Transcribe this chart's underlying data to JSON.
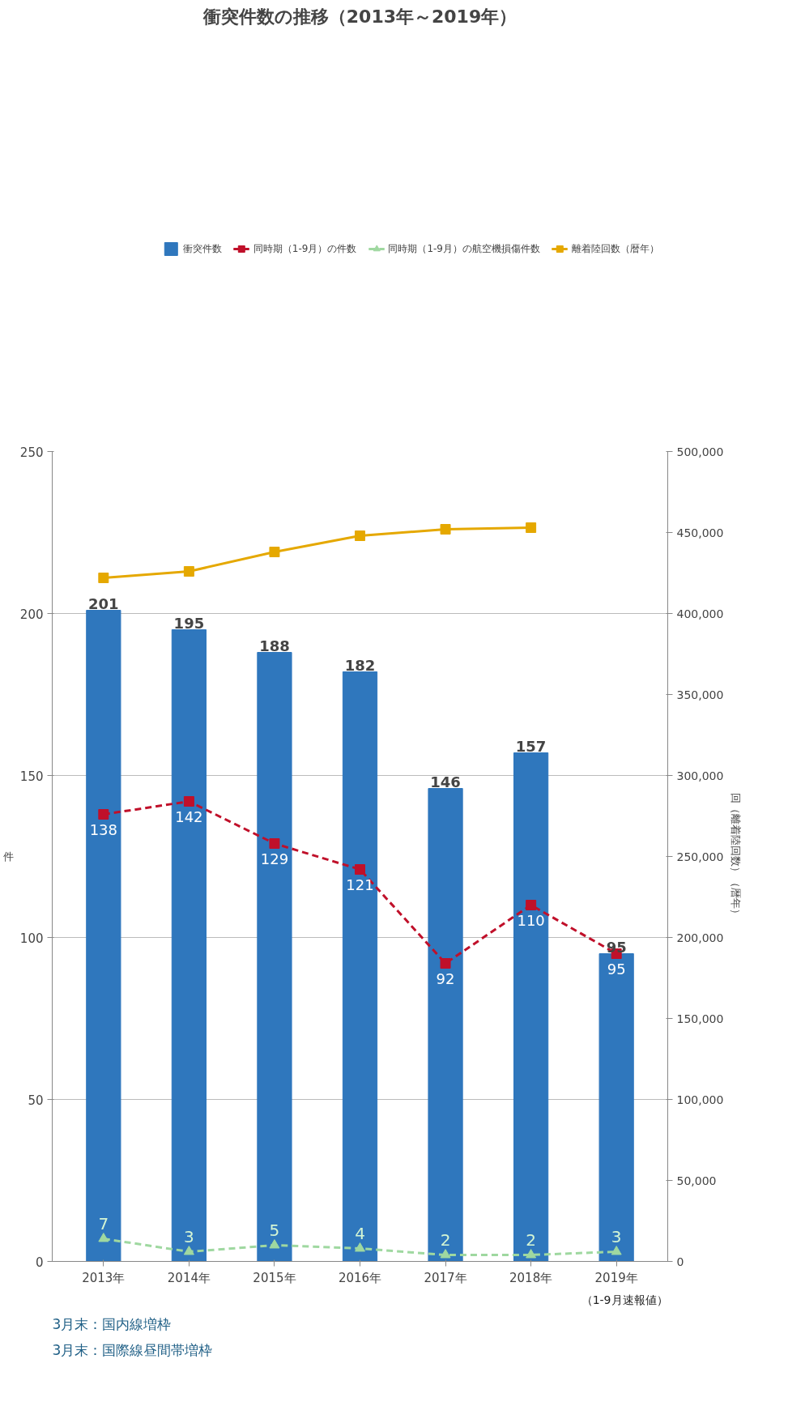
{
  "chart_data": {
    "type": "bar",
    "title": "衝突件数の推移（2013年～2019年）",
    "ylabel": "件",
    "y2label": "回（離着陸回数）（暦年）",
    "categories": [
      "2013年",
      "2014年",
      "2015年",
      "2016年",
      "2017年",
      "2018年",
      "2019年"
    ],
    "series": [
      {
        "name": "衝突件数",
        "color": "#2f77bd",
        "values": [
          201,
          195,
          188,
          182,
          146,
          157,
          95
        ],
        "value_labels": [
          "201",
          "195",
          "188",
          "182",
          "146",
          "157",
          "95"
        ]
      },
      {
        "name": "同時期（1-9月）の件数",
        "type": "line",
        "color": "#c0102a",
        "marker": "square",
        "line_style": "dashed",
        "values": [
          138,
          142,
          129,
          121,
          92,
          110,
          95
        ],
        "value_labels": [
          "138",
          "142",
          "129",
          "121",
          "92",
          "110",
          "95"
        ]
      },
      {
        "name": "同時期（1-9月）の航空機損傷件数",
        "type": "line",
        "color": "#9fd8a0",
        "marker": "triangle",
        "line_style": "dashed",
        "values": [
          7,
          3,
          5,
          4,
          2,
          2,
          3
        ],
        "value_labels": [
          "7",
          "3",
          "5",
          "4",
          "2",
          "2",
          "3"
        ]
      },
      {
        "name": "離着陸回数（暦年）",
        "type": "line",
        "color": "#e5a800",
        "marker": "square",
        "line_style": "solid",
        "axis": "y2",
        "values": [
          422000,
          426000,
          438000,
          448000,
          452000,
          453000,
          null
        ]
      }
    ],
    "ylim": [
      0,
      250
    ],
    "yticks": [
      0,
      50,
      100,
      150,
      200,
      250
    ],
    "y2lim": [
      0,
      500000
    ],
    "y2ticks": [
      {
        "value": 0,
        "label": "0"
      },
      {
        "value": 50000,
        "label": "50,000"
      },
      {
        "value": 100000,
        "label": "100,000"
      },
      {
        "value": 150000,
        "label": "150,000"
      },
      {
        "value": 200000,
        "label": "200,000"
      },
      {
        "value": 250000,
        "label": "250,000"
      },
      {
        "value": 300000,
        "label": "300,000"
      },
      {
        "value": 350000,
        "label": "350,000"
      },
      {
        "value": 400000,
        "label": "400,000"
      },
      {
        "value": 450000,
        "label": "450,000"
      },
      {
        "value": 500000,
        "label": "500,000"
      }
    ],
    "grid": "y",
    "legend": "top",
    "annotations": [
      "（1-9月速報値）",
      "3月末：国内線増枠",
      "3月末：国際線昼間帯増枠"
    ]
  }
}
